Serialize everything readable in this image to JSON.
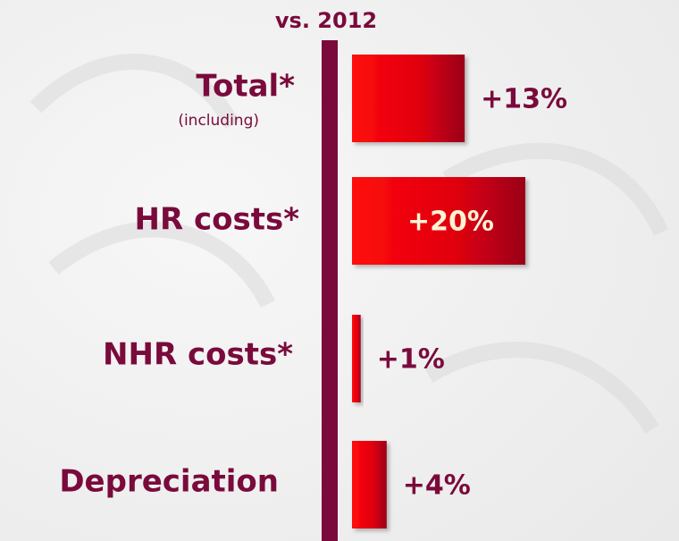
{
  "chart_data": {
    "type": "bar",
    "orientation": "horizontal",
    "title": "vs. 2012",
    "categories": [
      "Total*",
      "HR costs*",
      "NHR costs*",
      "Depreciation"
    ],
    "category_notes": [
      "(including)"
    ],
    "values": [
      13,
      20,
      1,
      4
    ],
    "value_labels": [
      "+13%",
      "+20%",
      "+1%",
      "+4%"
    ],
    "color": "#e00010",
    "xlim": [
      0,
      20
    ]
  }
}
